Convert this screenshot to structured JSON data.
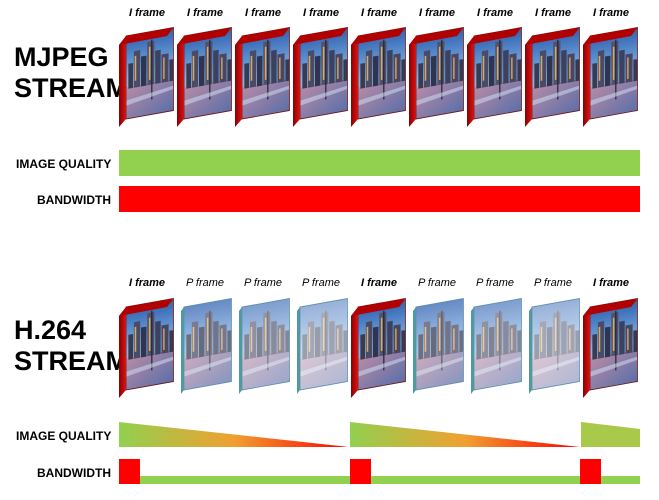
{
  "mjpeg": {
    "title_line1": "MJPEG",
    "title_line2": "STREAM",
    "frames": [
      "I frame",
      "I frame",
      "I frame",
      "I frame",
      "I frame",
      "I frame",
      "I frame",
      "I frame",
      "I frame"
    ],
    "image_quality_label": "IMAGE QUALITY",
    "bandwidth_label": "BANDWIDTH"
  },
  "h264": {
    "title_line1": "H.264",
    "title_line2": "STREAM",
    "frames": [
      "I frame",
      "P frame",
      "P frame",
      "P frame",
      "I frame",
      "P frame",
      "P frame",
      "P frame",
      "I frame"
    ],
    "image_quality_label": "IMAGE QUALITY",
    "bandwidth_label": "BANDWIDTH"
  },
  "colors": {
    "green": "#92d050",
    "red": "#ff0000",
    "frame_edge": "#c00000"
  }
}
